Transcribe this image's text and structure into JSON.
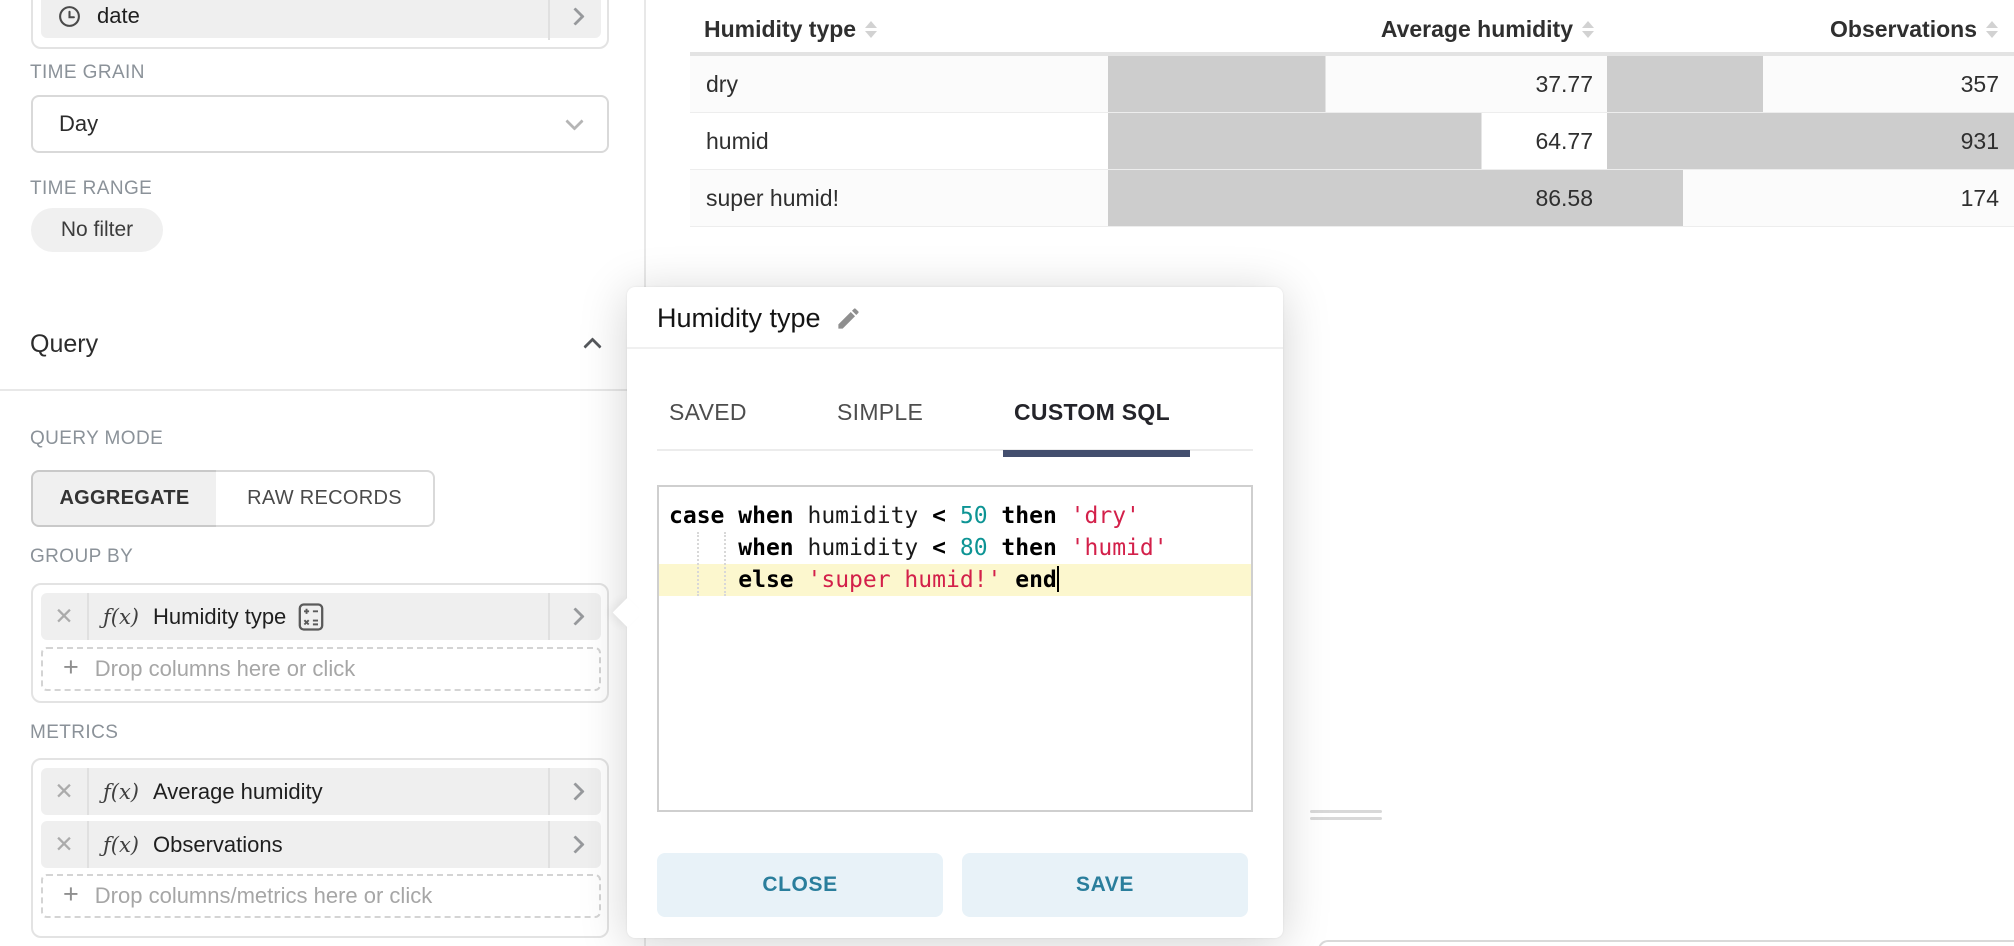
{
  "sidebar": {
    "date_field": {
      "label": "date",
      "icon": "clock"
    },
    "time_grain": {
      "label": "TIME GRAIN",
      "value": "Day"
    },
    "time_range": {
      "label": "TIME RANGE",
      "value": "No filter"
    },
    "query_section": {
      "title": "Query"
    },
    "query_mode": {
      "label": "QUERY MODE",
      "aggregate": "AGGREGATE",
      "raw_records": "RAW RECORDS",
      "selected": "AGGREGATE"
    },
    "group_by": {
      "label": "GROUP BY",
      "item": {
        "fx": "ƒ(x)",
        "name": "Humidity type",
        "remove": "✕"
      },
      "drop_placeholder": "Drop columns here or click"
    },
    "metrics": {
      "label": "METRICS",
      "items": [
        {
          "fx": "ƒ(x)",
          "name": "Average humidity",
          "remove": "✕"
        },
        {
          "fx": "ƒ(x)",
          "name": "Observations",
          "remove": "✕"
        }
      ],
      "drop_placeholder": "Drop columns/metrics here or click"
    }
  },
  "main": {
    "table": {
      "headers": [
        "Humidity type",
        "Average humidity",
        "Observations"
      ],
      "rows": [
        {
          "name": "dry",
          "avg": 37.77,
          "avg_text": "37.77",
          "obs": 357,
          "obs_text": "357"
        },
        {
          "name": "humid",
          "avg": 64.77,
          "avg_text": "64.77",
          "obs": 931,
          "obs_text": "931"
        },
        {
          "name": "super humid!",
          "avg": 86.58,
          "avg_text": "86.58",
          "obs": 174,
          "obs_text": "174"
        }
      ]
    }
  },
  "popover": {
    "title": "Humidity type",
    "tabs": [
      {
        "label": "SAVED",
        "active": false
      },
      {
        "label": "SIMPLE",
        "active": false
      },
      {
        "label": "CUSTOM SQL",
        "active": true
      }
    ],
    "editor": {
      "cursor_line": 2,
      "lines": [
        {
          "tokens": [
            {
              "type": "kw",
              "text": "case"
            },
            {
              "type": "plain",
              "text": " "
            },
            {
              "type": "kw",
              "text": "when"
            },
            {
              "type": "plain",
              "text": " humidity "
            },
            {
              "type": "kw",
              "text": "<"
            },
            {
              "type": "plain",
              "text": " "
            },
            {
              "type": "num",
              "text": "50"
            },
            {
              "type": "plain",
              "text": " "
            },
            {
              "type": "kw",
              "text": "then"
            },
            {
              "type": "plain",
              "text": " "
            },
            {
              "type": "str",
              "text": "'dry'"
            }
          ]
        },
        {
          "tokens": [
            {
              "type": "plain",
              "text": "     "
            },
            {
              "type": "kw",
              "text": "when"
            },
            {
              "type": "plain",
              "text": " humidity "
            },
            {
              "type": "kw",
              "text": "<"
            },
            {
              "type": "plain",
              "text": " "
            },
            {
              "type": "num",
              "text": "80"
            },
            {
              "type": "plain",
              "text": " "
            },
            {
              "type": "kw",
              "text": "then"
            },
            {
              "type": "plain",
              "text": " "
            },
            {
              "type": "str",
              "text": "'humid'"
            }
          ]
        },
        {
          "tokens": [
            {
              "type": "plain",
              "text": "     "
            },
            {
              "type": "kw",
              "text": "else"
            },
            {
              "type": "plain",
              "text": " "
            },
            {
              "type": "str",
              "text": "'super humid!'"
            },
            {
              "type": "plain",
              "text": " "
            },
            {
              "type": "kw",
              "text": "end"
            }
          ]
        }
      ]
    },
    "buttons": {
      "close": "CLOSE",
      "save": "SAVE"
    }
  },
  "colors": {
    "bar": "#cdcdcd",
    "row_alt": "#fbfbfb",
    "tab_ink": "#434e6e",
    "button_bg": "#e8f2f8",
    "button_text": "#2a7e9c",
    "active_line": "#fcf7ce"
  }
}
